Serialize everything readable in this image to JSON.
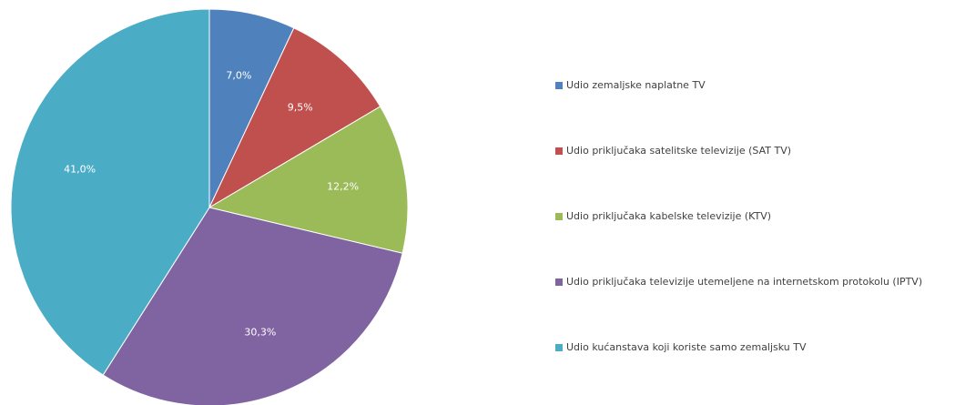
{
  "chart_data": {
    "type": "pie",
    "categories": [
      "Udio zemaljske naplatne TV",
      "Udio priključaka satelitske televizije (SAT TV)",
      "Udio priključaka kabelske televizije (KTV)",
      "Udio priključaka televizije utemeljene na internetskom protokolu (IPTV)",
      "Udio kućanstava koji koriste samo zemaljsku TV"
    ],
    "values": [
      7.0,
      9.5,
      12.2,
      30.3,
      41.0
    ],
    "value_labels": [
      "7,0%",
      "9,5%",
      "12,2%",
      "30,3%",
      "41,0%"
    ],
    "colors": [
      "#4f81bd",
      "#c0504d",
      "#9bbb59",
      "#8064a2",
      "#4bacc6"
    ],
    "legend": "right"
  }
}
